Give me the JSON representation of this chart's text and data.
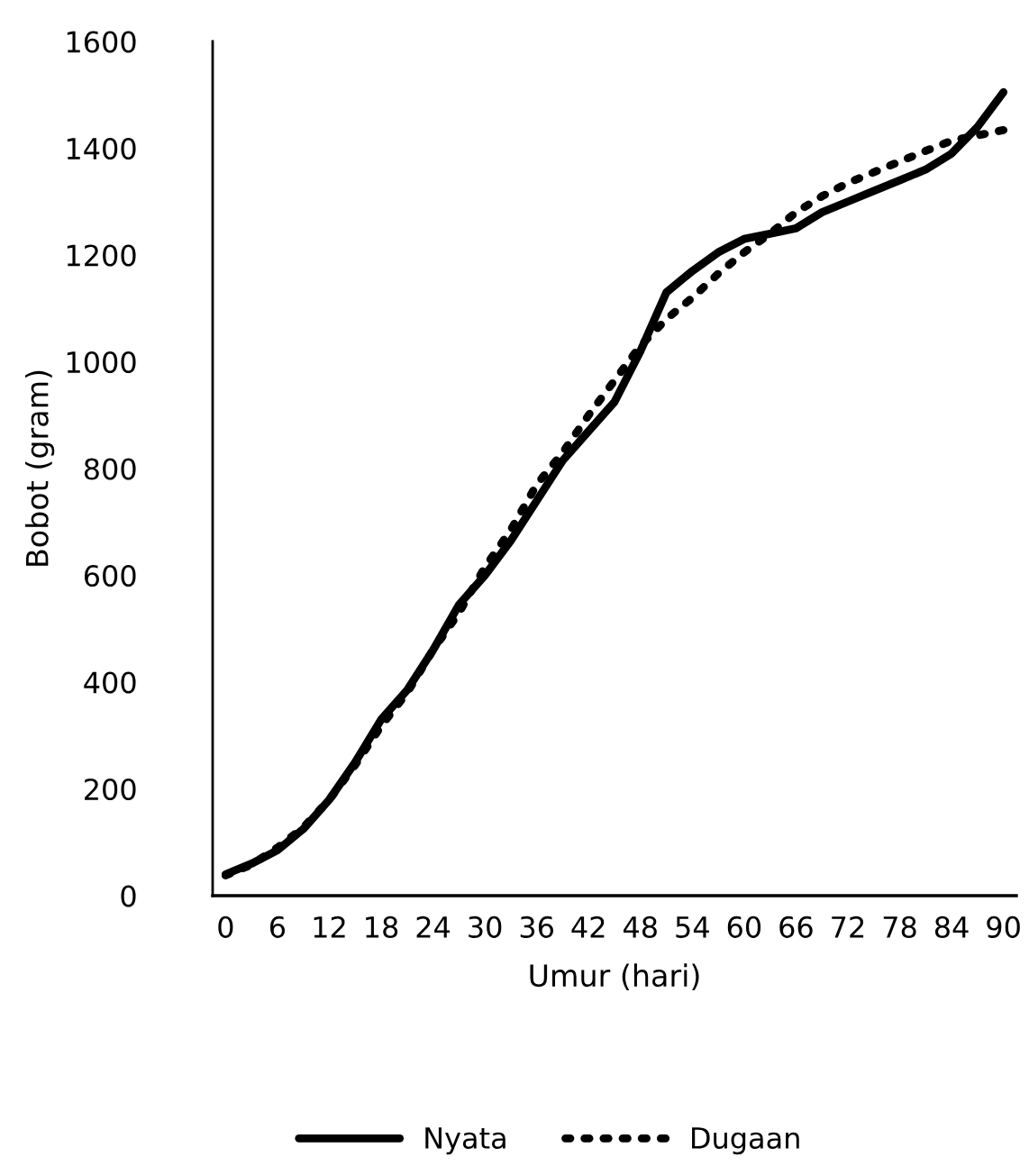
{
  "chart_data": {
    "type": "line",
    "xlabel": "Umur (hari)",
    "ylabel": "Bobot (gram)",
    "categories": [
      "0",
      null,
      "6",
      null,
      "12",
      null,
      "18",
      null,
      "24",
      null,
      "30",
      null,
      "36",
      null,
      "42",
      null,
      "48",
      null,
      "54",
      null,
      "60",
      null,
      "66",
      null,
      "72",
      null,
      "78",
      null,
      "84",
      null,
      "90"
    ],
    "series": [
      {
        "name": "Nyata",
        "color": "#000000",
        "line_style": "solid",
        "values": [
          40,
          60,
          85,
          125,
          180,
          250,
          330,
          385,
          460,
          545,
          600,
          665,
          740,
          815,
          870,
          925,
          1020,
          1130,
          1170,
          1205,
          1230,
          1240,
          1250,
          1280,
          1300,
          1320,
          1340,
          1360,
          1390,
          1440,
          1505
        ]
      },
      {
        "name": "Dugaan",
        "color": "#000000",
        "line_style": "dotted",
        "values": [
          38,
          58,
          90,
          128,
          180,
          245,
          318,
          380,
          460,
          530,
          615,
          685,
          770,
          830,
          900,
          965,
          1030,
          1080,
          1120,
          1165,
          1205,
          1240,
          1280,
          1310,
          1335,
          1355,
          1375,
          1395,
          1414,
          1424,
          1434
        ]
      }
    ],
    "ylim": [
      0,
      1600
    ],
    "yticks": [
      0,
      200,
      400,
      600,
      800,
      1000,
      1200,
      1400,
      1600
    ],
    "grid": false,
    "legend": "bottom"
  }
}
